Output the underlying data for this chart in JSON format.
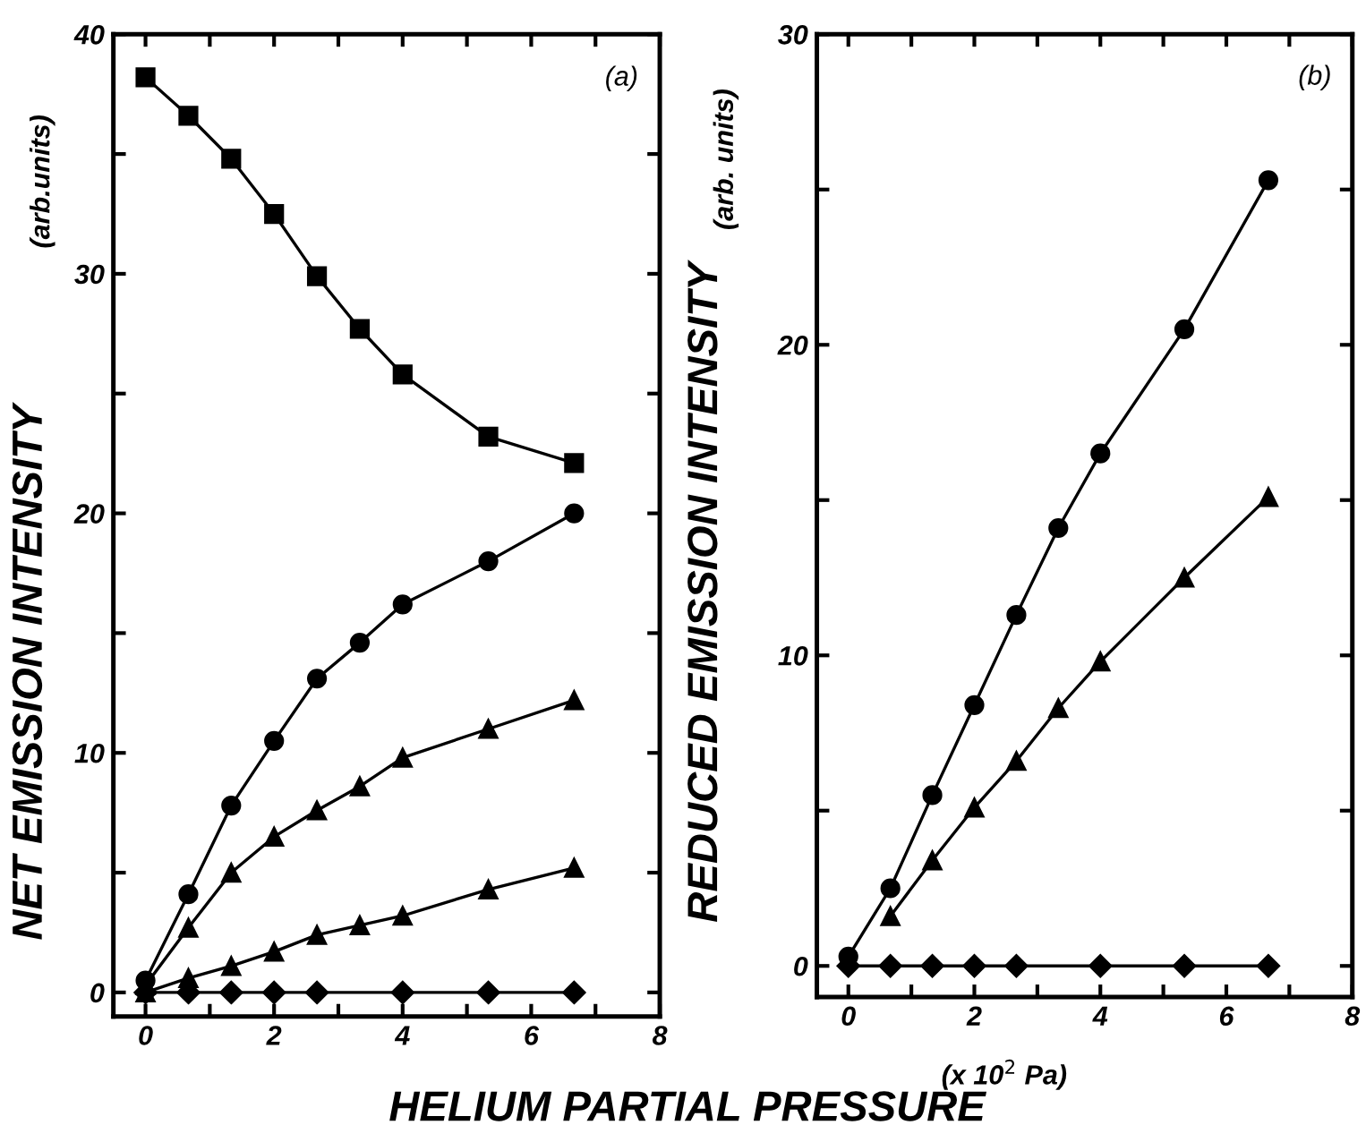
{
  "chart_data": [
    {
      "type": "line",
      "xlabel": "HELIUM PARTIAL PRESSURE",
      "ylabel": "NET EMISSION INTENSITY",
      "annotations": [
        "(arb.units)",
        "(a)"
      ],
      "xlim": [
        -0.5,
        8
      ],
      "ylim": [
        -1,
        40
      ],
      "xticks": [
        0,
        {
          "value": 1,
          "label": null
        },
        2,
        {
          "value": 3,
          "label": null
        },
        4,
        {
          "value": 5,
          "label": null
        },
        6,
        {
          "value": 7,
          "label": null
        },
        8
      ],
      "yticks": [
        0,
        {
          "value": 5,
          "label": null
        },
        10,
        {
          "value": 15,
          "label": null
        },
        20,
        {
          "value": 25,
          "label": null
        },
        30,
        {
          "value": 35,
          "label": null
        },
        40
      ],
      "grid": false,
      "legend": false,
      "line_style": "solid",
      "series": [
        {
          "color": "#000000",
          "marker": "square",
          "x": [
            0,
            0.667,
            1.333,
            2,
            2.667,
            3.333,
            4,
            5.333,
            6.667
          ],
          "values": [
            38.2,
            36.6,
            34.8,
            32.5,
            29.9,
            27.7,
            25.8,
            23.2,
            22.1
          ]
        },
        {
          "color": "#000000",
          "marker": "circle",
          "x": [
            0,
            0.667,
            1.333,
            2,
            2.667,
            3.333,
            4,
            5.333,
            6.667
          ],
          "values": [
            0.5,
            4.1,
            7.8,
            10.5,
            13.1,
            14.6,
            16.2,
            18.0,
            20.0
          ]
        },
        {
          "color": "#000000",
          "marker": "triangle",
          "x": [
            0,
            0.667,
            1.333,
            2,
            2.667,
            3.333,
            4,
            5.333,
            6.667
          ],
          "values": [
            0.3,
            2.7,
            5.0,
            6.5,
            7.6,
            8.6,
            9.8,
            11.0,
            12.2
          ]
        },
        {
          "color": "#000000",
          "marker": "triangle",
          "x": [
            0,
            0.667,
            1.333,
            2,
            2.667,
            3.333,
            4,
            5.333,
            6.667
          ],
          "values": [
            0,
            0.6,
            1.1,
            1.7,
            2.4,
            2.8,
            3.2,
            4.3,
            5.2
          ]
        },
        {
          "color": "#000000",
          "marker": "diamond",
          "x": [
            0,
            0.667,
            1.333,
            2,
            2.667,
            4,
            5.333,
            6.667
          ],
          "values": [
            0,
            0,
            0,
            0,
            0,
            0,
            0,
            0
          ]
        }
      ]
    },
    {
      "type": "line",
      "xlabel": "(x 10$^{2}$ Pa)",
      "ylabel": "REDUCED EMISSION INTENSITY",
      "annotations": [
        "(arb. units)",
        "(b)"
      ],
      "xlim": [
        -0.5,
        8
      ],
      "ylim": [
        -1,
        30
      ],
      "xticks": [
        0,
        {
          "value": 1,
          "label": null
        },
        2,
        {
          "value": 3,
          "label": null
        },
        4,
        {
          "value": 5,
          "label": null
        },
        6,
        {
          "value": 7,
          "label": null
        },
        8
      ],
      "yticks": [
        0,
        {
          "value": 5,
          "label": null
        },
        10,
        {
          "value": 15,
          "label": null
        },
        20,
        {
          "value": 25,
          "label": null
        },
        30
      ],
      "grid": false,
      "legend": false,
      "line_style": "solid",
      "series": [
        {
          "color": "#000000",
          "marker": "circle",
          "x": [
            0,
            0.667,
            1.333,
            2,
            2.667,
            3.333,
            4,
            5.333,
            6.667
          ],
          "values": [
            0.3,
            2.5,
            5.5,
            8.4,
            11.3,
            14.1,
            16.5,
            20.5,
            25.3
          ]
        },
        {
          "color": "#000000",
          "marker": "triangle",
          "x": [
            0.667,
            1.333,
            2,
            2.667,
            3.333,
            4,
            5.333,
            6.667
          ],
          "values": [
            1.6,
            3.4,
            5.1,
            6.6,
            8.3,
            9.8,
            12.5,
            15.1
          ]
        },
        {
          "color": "#000000",
          "marker": "diamond",
          "x": [
            0,
            0.667,
            1.333,
            2,
            2.667,
            4,
            5.333,
            6.667
          ],
          "values": [
            0,
            0,
            0,
            0,
            0,
            0,
            0,
            0
          ]
        }
      ]
    }
  ]
}
